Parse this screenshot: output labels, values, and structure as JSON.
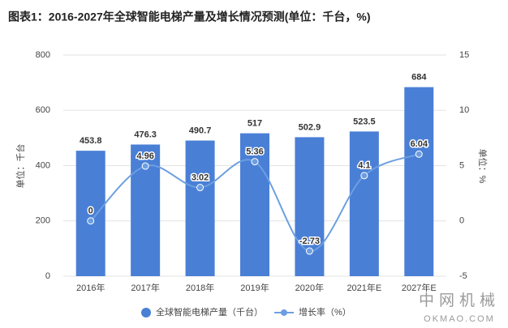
{
  "chart_data": {
    "type": "bar_line",
    "title": "图表1：2016-2027年全球智能电梯产量及增长情况预测(单位：千台，%)",
    "ylabel": "单位：千台",
    "y2label": "单位：%",
    "categories": [
      "2016年",
      "2017年",
      "2018年",
      "2019年",
      "2020年",
      "2021年E",
      "2027年E"
    ],
    "series": [
      {
        "name": "全球智能电梯产量（千台）",
        "type": "bar",
        "color": "#4a7fd6",
        "values": [
          453.8,
          476.3,
          490.7,
          517,
          502.9,
          523.5,
          684
        ]
      },
      {
        "name": "增长率（%）",
        "type": "line",
        "axis": "y2",
        "color": "#6d9fe0",
        "values": [
          0,
          4.96,
          3.02,
          5.36,
          -2.73,
          4.1,
          6.04
        ]
      }
    ],
    "ylim": [
      0,
      800
    ],
    "yticks": [
      0,
      200,
      400,
      600,
      800
    ],
    "y2lim": [
      -5,
      15
    ],
    "y2ticks": [
      -5,
      0,
      5,
      10,
      15
    ],
    "grid": true,
    "legend": "bottom",
    "logo": {
      "name": "中网机械",
      "url": "OKMAO.COM"
    }
  }
}
